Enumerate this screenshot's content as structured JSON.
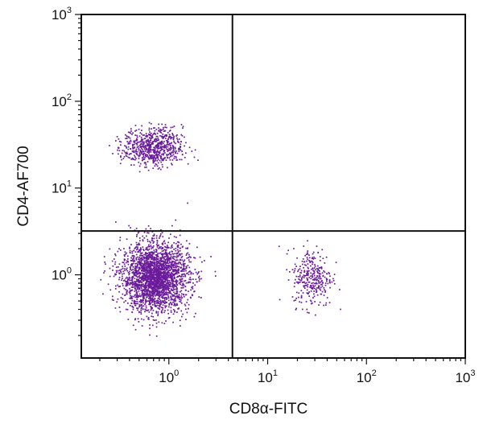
{
  "chart_data": {
    "type": "scatter",
    "title": "",
    "xlabel": "CD8α-FITC",
    "ylabel": "CD4-AF700",
    "xscale": "log",
    "yscale": "log",
    "xlim": [
      0.13,
      1000
    ],
    "ylim": [
      0.11,
      1000
    ],
    "x_ticks": [
      {
        "base": "10",
        "exp": "0",
        "value": 1
      },
      {
        "base": "10",
        "exp": "1",
        "value": 10
      },
      {
        "base": "10",
        "exp": "2",
        "value": 100
      },
      {
        "base": "10",
        "exp": "3",
        "value": 1000
      }
    ],
    "y_ticks": [
      {
        "base": "10",
        "exp": "0",
        "value": 1
      },
      {
        "base": "10",
        "exp": "1",
        "value": 10
      },
      {
        "base": "10",
        "exp": "2",
        "value": 100
      },
      {
        "base": "10",
        "exp": "3",
        "value": 1000
      }
    ],
    "quadrant_gates": {
      "x": 4.4,
      "y": 3.2
    },
    "point_color": "#6a1b9a",
    "populations": [
      {
        "center": [
          0.72,
          0.95
        ],
        "spread": [
          0.17,
          0.2
        ],
        "count": 2600
      },
      {
        "center": [
          0.68,
          30
        ],
        "spread": [
          0.15,
          0.11
        ],
        "count": 700
      },
      {
        "center": [
          28,
          0.95
        ],
        "spread": [
          0.1,
          0.17
        ],
        "count": 320
      }
    ],
    "grid": false
  }
}
